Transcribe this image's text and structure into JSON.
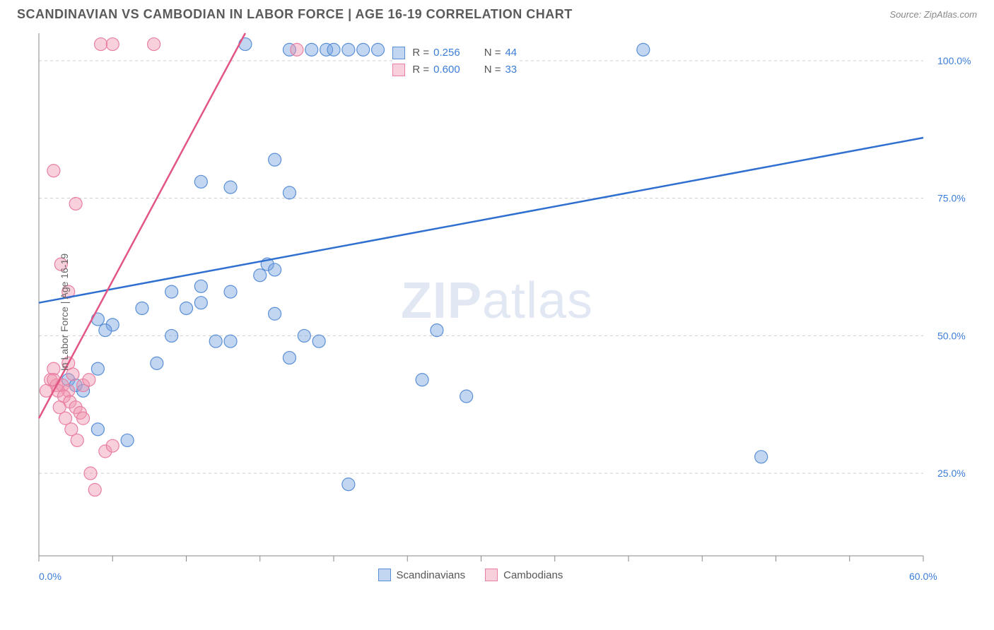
{
  "title": "SCANDINAVIAN VS CAMBODIAN IN LABOR FORCE | AGE 16-19 CORRELATION CHART",
  "source_label": "Source: ZipAtlas.com",
  "ylabel": "In Labor Force | Age 16-19",
  "watermark_bold": "ZIP",
  "watermark_rest": "atlas",
  "chart": {
    "type": "scatter",
    "background_color": "#ffffff",
    "grid_color": "#cccccc",
    "axis_color": "#888888",
    "xlim": [
      0,
      60
    ],
    "ylim": [
      10,
      105
    ],
    "x_ticks": [
      0,
      5,
      10,
      15,
      20,
      25,
      30,
      35,
      40,
      45,
      50,
      55,
      60
    ],
    "x_tick_labels": {
      "0": "0.0%",
      "60": "60.0%"
    },
    "y_ticks": [
      25,
      50,
      75,
      100
    ],
    "y_tick_labels": {
      "25": "25.0%",
      "50": "50.0%",
      "75": "75.0%",
      "100": "100.0%"
    },
    "label_color": "#3b7dd8",
    "marker_radius": 9,
    "marker_stroke_width": 1.2,
    "trend_line_width": 2.5,
    "series": [
      {
        "name": "Scandinavians",
        "fill": "rgba(120,165,225,0.45)",
        "stroke": "#5a8fd6",
        "line_color": "#2f6fd0",
        "R": "0.256",
        "N": "44",
        "trend": {
          "x1": 0,
          "y1": 56,
          "x2": 60,
          "y2": 86
        },
        "points": [
          [
            14,
            103
          ],
          [
            17,
            102
          ],
          [
            18.5,
            102
          ],
          [
            19.5,
            102
          ],
          [
            20,
            102
          ],
          [
            21,
            102
          ],
          [
            22,
            102
          ],
          [
            23,
            102
          ],
          [
            41,
            102
          ],
          [
            16,
            82
          ],
          [
            13,
            77
          ],
          [
            11,
            78
          ],
          [
            17,
            76
          ],
          [
            15.5,
            63
          ],
          [
            16,
            62
          ],
          [
            15,
            61
          ],
          [
            11,
            59
          ],
          [
            9,
            58
          ],
          [
            13,
            58
          ],
          [
            11,
            56
          ],
          [
            7,
            55
          ],
          [
            10,
            55
          ],
          [
            16,
            54
          ],
          [
            4,
            53
          ],
          [
            5,
            52
          ],
          [
            4.5,
            51
          ],
          [
            9,
            50
          ],
          [
            12,
            49
          ],
          [
            13,
            49
          ],
          [
            18,
            50
          ],
          [
            19,
            49
          ],
          [
            17,
            46
          ],
          [
            8,
            45
          ],
          [
            4,
            44
          ],
          [
            27,
            51
          ],
          [
            26,
            42
          ],
          [
            29,
            39
          ],
          [
            2,
            42
          ],
          [
            2.5,
            41
          ],
          [
            3,
            40
          ],
          [
            21,
            23
          ],
          [
            49,
            28
          ],
          [
            4,
            33
          ],
          [
            6,
            31
          ]
        ]
      },
      {
        "name": "Cambodians",
        "fill": "rgba(240,150,175,0.45)",
        "stroke": "#e97fa4",
        "line_color": "#e25584",
        "R": "0.600",
        "N": "33",
        "trend": {
          "x1": 0,
          "y1": 35,
          "x2": 14,
          "y2": 105
        },
        "points": [
          [
            4.2,
            103
          ],
          [
            5,
            103
          ],
          [
            7.8,
            103
          ],
          [
            17.5,
            102
          ],
          [
            1,
            80
          ],
          [
            2.5,
            74
          ],
          [
            1.5,
            63
          ],
          [
            2,
            58
          ],
          [
            1,
            44
          ],
          [
            2,
            45
          ],
          [
            2.3,
            43
          ],
          [
            0.8,
            42
          ],
          [
            1.2,
            41
          ],
          [
            1.6,
            41
          ],
          [
            2.0,
            40
          ],
          [
            0.5,
            40
          ],
          [
            1.0,
            42
          ],
          [
            1.3,
            40
          ],
          [
            1.7,
            39
          ],
          [
            2.1,
            38
          ],
          [
            2.5,
            37
          ],
          [
            1.4,
            37
          ],
          [
            2.8,
            36
          ],
          [
            3.0,
            35
          ],
          [
            1.8,
            35
          ],
          [
            2.2,
            33
          ],
          [
            2.6,
            31
          ],
          [
            4.5,
            29
          ],
          [
            5,
            30
          ],
          [
            3.5,
            25
          ],
          [
            3.8,
            22
          ],
          [
            3.0,
            41
          ],
          [
            3.4,
            42
          ]
        ]
      }
    ]
  },
  "legend_top": {
    "rows": [
      {
        "swatch_fill": "rgba(120,165,225,0.45)",
        "swatch_stroke": "#5a8fd6",
        "R_label": "R =",
        "R": "0.256",
        "N_label": "N =",
        "N": "44"
      },
      {
        "swatch_fill": "rgba(240,150,175,0.45)",
        "swatch_stroke": "#e97fa4",
        "R_label": "R =",
        "R": "0.600",
        "N_label": "N =",
        "N": "33"
      }
    ]
  },
  "legend_bottom": {
    "items": [
      {
        "swatch_fill": "rgba(120,165,225,0.45)",
        "swatch_stroke": "#5a8fd6",
        "label": "Scandinavians"
      },
      {
        "swatch_fill": "rgba(240,150,175,0.45)",
        "swatch_stroke": "#e97fa4",
        "label": "Cambodians"
      }
    ]
  }
}
